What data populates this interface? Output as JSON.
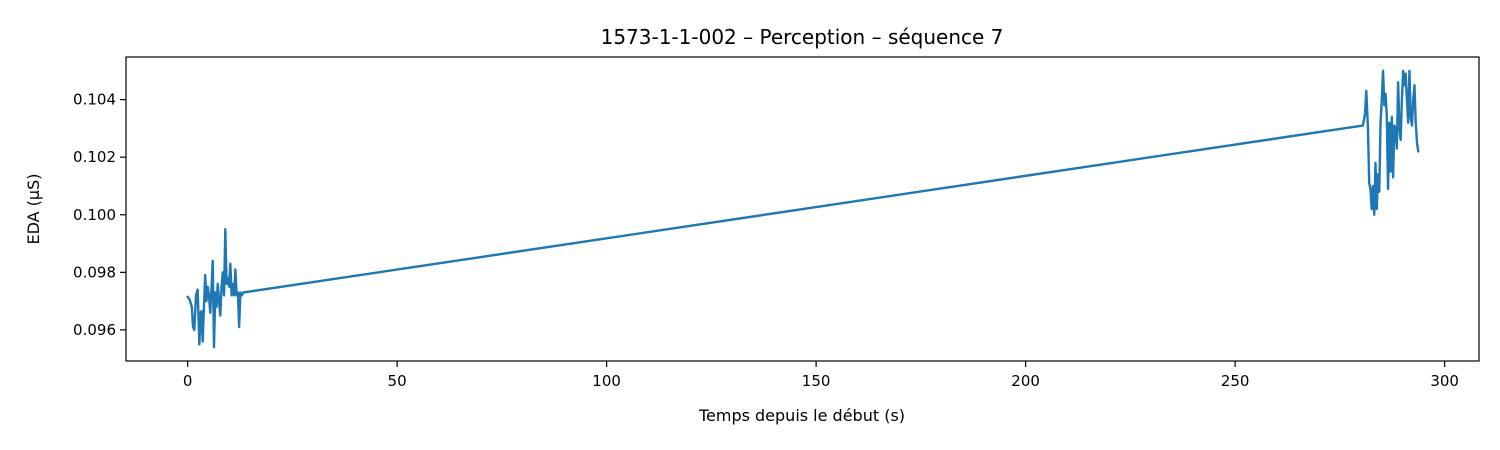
{
  "chart_data": {
    "type": "line",
    "title": "1573-1-1-002 – Perception – séquence 7",
    "xlabel": "Temps depuis le début (s)",
    "ylabel": "EDA (µS)",
    "xlim": [
      -14.7,
      308.2
    ],
    "ylim": [
      0.09492,
      0.10548
    ],
    "xticks": [
      0,
      50,
      100,
      150,
      200,
      250,
      300
    ],
    "yticks": [
      0.096,
      0.098,
      0.1,
      0.102,
      0.104
    ],
    "ytick_labels": [
      "0.096",
      "0.098",
      "0.100",
      "0.102",
      "0.104"
    ],
    "grid": false,
    "series": [
      {
        "color": "#1f77b4",
        "x": [
          0.0,
          0.5,
          1.0,
          1.3,
          1.6,
          2.0,
          2.4,
          2.8,
          3.1,
          3.3,
          3.6,
          3.9,
          4.2,
          4.5,
          4.8,
          5.1,
          5.4,
          5.7,
          6.0,
          6.3,
          6.6,
          6.9,
          7.2,
          7.5,
          7.8,
          8.1,
          8.4,
          8.7,
          9.0,
          9.3,
          9.6,
          9.9,
          10.2,
          10.5,
          10.8,
          11.1,
          11.4,
          11.7,
          12.0,
          12.3,
          12.6,
          12.9,
          13.3,
          280.5,
          281.0,
          281.3,
          281.7,
          282.0,
          282.3,
          282.6,
          282.9,
          283.2,
          283.5,
          283.8,
          284.1,
          284.4,
          284.7,
          285.0,
          285.3,
          285.6,
          285.9,
          286.2,
          286.5,
          286.8,
          287.1,
          287.4,
          287.7,
          288.0,
          288.3,
          288.6,
          288.9,
          289.2,
          289.5,
          289.8,
          290.1,
          290.4,
          290.7,
          291.0,
          291.3,
          291.6,
          291.9,
          292.2,
          292.5,
          292.8,
          293.1,
          293.4,
          293.7
        ],
        "y": [
          0.09715,
          0.09705,
          0.0968,
          0.0961,
          0.096,
          0.0972,
          0.0974,
          0.0955,
          0.0966,
          0.09665,
          0.0956,
          0.0968,
          0.0979,
          0.097,
          0.0975,
          0.0972,
          0.0966,
          0.0974,
          0.0984,
          0.0954,
          0.0973,
          0.0968,
          0.0976,
          0.097,
          0.0965,
          0.0975,
          0.098,
          0.0972,
          0.0995,
          0.0976,
          0.0978,
          0.0975,
          0.0983,
          0.0972,
          0.0976,
          0.0972,
          0.0981,
          0.0972,
          0.0973,
          0.0961,
          0.0973,
          0.0972,
          0.0973,
          0.1031,
          0.1035,
          0.1043,
          0.103,
          0.1011,
          0.1009,
          0.1002,
          0.101,
          0.1,
          0.1018,
          0.1002,
          0.1014,
          0.1008,
          0.1032,
          0.104,
          0.105,
          0.1038,
          0.1042,
          0.1034,
          0.1009,
          0.1032,
          0.1015,
          0.1034,
          0.1013,
          0.1031,
          0.103,
          0.1023,
          0.1046,
          0.103,
          0.1026,
          0.104,
          0.105,
          0.1045,
          0.1049,
          0.104,
          0.1032,
          0.105,
          0.1034,
          0.1031,
          0.104,
          0.1045,
          0.1032,
          0.1025,
          0.1022
        ]
      }
    ]
  }
}
